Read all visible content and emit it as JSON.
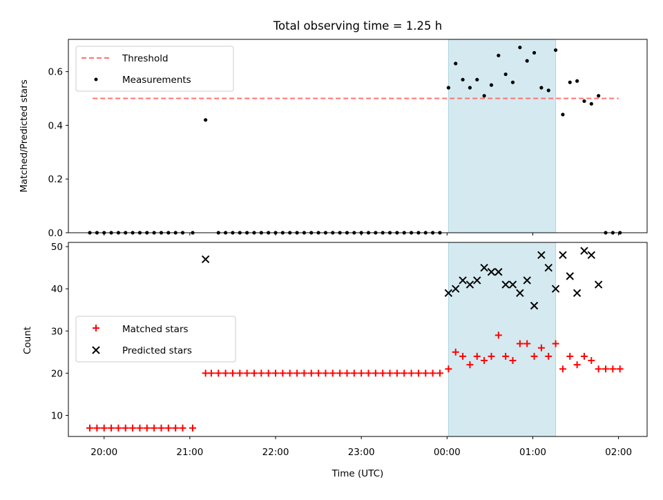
{
  "chart_data": [
    {
      "type": "scatter",
      "title": "Total observing time = 1.25 h",
      "ylabel": "Matched/Predicted stars",
      "xlabel": "",
      "xlim": [
        "19:35",
        "02:20"
      ],
      "ylim": [
        0,
        0.72
      ],
      "y_ticks": [
        0.0,
        0.2,
        0.4,
        0.6
      ],
      "y_tick_labels": [
        "0.0",
        "0.2",
        "0.4",
        "0.6"
      ],
      "shaded_region": {
        "x": [
          "00:01",
          "01:16"
        ],
        "color": "#d4eaf0"
      },
      "legend": {
        "placement": "top-left",
        "entries": [
          "Threshold",
          "Measurements"
        ]
      },
      "series": [
        {
          "name": "Threshold",
          "kind": "dashed-line",
          "color": "#ff7070",
          "x": [
            "19:52",
            "02:00"
          ],
          "y": [
            0.5,
            0.5
          ]
        },
        {
          "name": "Measurements",
          "kind": "points",
          "color": "#000000",
          "points": [
            [
              "19:50",
              0
            ],
            [
              "19:55",
              0
            ],
            [
              "20:00",
              0
            ],
            [
              "20:05",
              0
            ],
            [
              "20:10",
              0
            ],
            [
              "20:15",
              0
            ],
            [
              "20:20",
              0
            ],
            [
              "20:25",
              0
            ],
            [
              "20:30",
              0
            ],
            [
              "20:35",
              0
            ],
            [
              "20:40",
              0
            ],
            [
              "20:45",
              0
            ],
            [
              "20:50",
              0
            ],
            [
              "20:55",
              0
            ],
            [
              "21:02",
              0
            ],
            [
              "21:11",
              0.42
            ],
            [
              "21:20",
              0
            ],
            [
              "21:25",
              0
            ],
            [
              "21:30",
              0
            ],
            [
              "21:35",
              0
            ],
            [
              "21:40",
              0
            ],
            [
              "21:45",
              0
            ],
            [
              "21:50",
              0
            ],
            [
              "21:55",
              0
            ],
            [
              "22:00",
              0
            ],
            [
              "22:05",
              0
            ],
            [
              "22:10",
              0
            ],
            [
              "22:15",
              0
            ],
            [
              "22:20",
              0
            ],
            [
              "22:25",
              0
            ],
            [
              "22:30",
              0
            ],
            [
              "22:35",
              0
            ],
            [
              "22:40",
              0
            ],
            [
              "22:45",
              0
            ],
            [
              "22:50",
              0
            ],
            [
              "22:55",
              0
            ],
            [
              "23:00",
              0
            ],
            [
              "23:05",
              0
            ],
            [
              "23:10",
              0
            ],
            [
              "23:15",
              0
            ],
            [
              "23:20",
              0
            ],
            [
              "23:25",
              0
            ],
            [
              "23:30",
              0
            ],
            [
              "23:35",
              0
            ],
            [
              "23:40",
              0
            ],
            [
              "23:45",
              0
            ],
            [
              "23:50",
              0
            ],
            [
              "23:55",
              0
            ],
            [
              "00:01",
              0.54
            ],
            [
              "00:06",
              0.63
            ],
            [
              "00:11",
              0.57
            ],
            [
              "00:16",
              0.54
            ],
            [
              "00:21",
              0.57
            ],
            [
              "00:26",
              0.51
            ],
            [
              "00:31",
              0.55
            ],
            [
              "00:36",
              0.66
            ],
            [
              "00:41",
              0.59
            ],
            [
              "00:46",
              0.56
            ],
            [
              "00:51",
              0.69
            ],
            [
              "00:56",
              0.64
            ],
            [
              "01:01",
              0.67
            ],
            [
              "01:06",
              0.54
            ],
            [
              "01:11",
              0.53
            ],
            [
              "01:16",
              0.68
            ],
            [
              "01:21",
              0.44
            ],
            [
              "01:26",
              0.56
            ],
            [
              "01:31",
              0.565
            ],
            [
              "01:36",
              0.49
            ],
            [
              "01:41",
              0.48
            ],
            [
              "01:46",
              0.51
            ],
            [
              "01:51",
              0
            ],
            [
              "01:56",
              0
            ],
            [
              "02:01",
              0
            ]
          ]
        }
      ]
    },
    {
      "type": "scatter",
      "title": "",
      "ylabel": "Count",
      "xlabel": "Time (UTC)",
      "xlim": [
        "19:35",
        "02:20"
      ],
      "ylim": [
        5,
        51
      ],
      "y_ticks": [
        10,
        20,
        30,
        40,
        50
      ],
      "y_tick_labels": [
        "10",
        "20",
        "30",
        "40",
        "50"
      ],
      "x_ticks": [
        "20:00",
        "21:00",
        "22:00",
        "23:00",
        "00:00",
        "01:00",
        "02:00"
      ],
      "shaded_region": {
        "x": [
          "00:01",
          "01:16"
        ],
        "color": "#d4eaf0"
      },
      "legend": {
        "placement": "center-left",
        "entries": [
          "Matched stars",
          "Predicted stars"
        ]
      },
      "series": [
        {
          "name": "Matched stars",
          "kind": "plus-markers",
          "color": "#ff0000",
          "points": [
            [
              "19:50",
              7
            ],
            [
              "19:55",
              7
            ],
            [
              "20:00",
              7
            ],
            [
              "20:05",
              7
            ],
            [
              "20:10",
              7
            ],
            [
              "20:15",
              7
            ],
            [
              "20:20",
              7
            ],
            [
              "20:25",
              7
            ],
            [
              "20:30",
              7
            ],
            [
              "20:35",
              7
            ],
            [
              "20:40",
              7
            ],
            [
              "20:45",
              7
            ],
            [
              "20:50",
              7
            ],
            [
              "20:55",
              7
            ],
            [
              "21:02",
              7
            ],
            [
              "21:11",
              20
            ],
            [
              "21:15",
              20
            ],
            [
              "21:20",
              20
            ],
            [
              "21:25",
              20
            ],
            [
              "21:30",
              20
            ],
            [
              "21:35",
              20
            ],
            [
              "21:40",
              20
            ],
            [
              "21:45",
              20
            ],
            [
              "21:50",
              20
            ],
            [
              "21:55",
              20
            ],
            [
              "22:00",
              20
            ],
            [
              "22:05",
              20
            ],
            [
              "22:10",
              20
            ],
            [
              "22:15",
              20
            ],
            [
              "22:20",
              20
            ],
            [
              "22:25",
              20
            ],
            [
              "22:30",
              20
            ],
            [
              "22:35",
              20
            ],
            [
              "22:40",
              20
            ],
            [
              "22:45",
              20
            ],
            [
              "22:50",
              20
            ],
            [
              "22:55",
              20
            ],
            [
              "23:00",
              20
            ],
            [
              "23:05",
              20
            ],
            [
              "23:10",
              20
            ],
            [
              "23:15",
              20
            ],
            [
              "23:20",
              20
            ],
            [
              "23:25",
              20
            ],
            [
              "23:30",
              20
            ],
            [
              "23:35",
              20
            ],
            [
              "23:40",
              20
            ],
            [
              "23:45",
              20
            ],
            [
              "23:50",
              20
            ],
            [
              "23:55",
              20
            ],
            [
              "00:01",
              21
            ],
            [
              "00:06",
              25
            ],
            [
              "00:11",
              24
            ],
            [
              "00:16",
              22
            ],
            [
              "00:21",
              24
            ],
            [
              "00:26",
              23
            ],
            [
              "00:31",
              24
            ],
            [
              "00:36",
              29
            ],
            [
              "00:41",
              24
            ],
            [
              "00:46",
              23
            ],
            [
              "00:51",
              27
            ],
            [
              "00:56",
              27
            ],
            [
              "01:01",
              24
            ],
            [
              "01:06",
              26
            ],
            [
              "01:11",
              24
            ],
            [
              "01:16",
              27
            ],
            [
              "01:21",
              21
            ],
            [
              "01:26",
              24
            ],
            [
              "01:31",
              22
            ],
            [
              "01:36",
              24
            ],
            [
              "01:41",
              23
            ],
            [
              "01:46",
              21
            ],
            [
              "01:51",
              21
            ],
            [
              "01:56",
              21
            ],
            [
              "02:01",
              21
            ]
          ]
        },
        {
          "name": "Predicted stars",
          "kind": "x-markers",
          "color": "#000000",
          "points": [
            [
              "21:11",
              47
            ],
            [
              "00:01",
              39
            ],
            [
              "00:06",
              40
            ],
            [
              "00:11",
              42
            ],
            [
              "00:16",
              41
            ],
            [
              "00:21",
              42
            ],
            [
              "00:26",
              45
            ],
            [
              "00:31",
              44
            ],
            [
              "00:36",
              44
            ],
            [
              "00:41",
              41
            ],
            [
              "00:46",
              41
            ],
            [
              "00:51",
              39
            ],
            [
              "00:56",
              42
            ],
            [
              "01:01",
              36
            ],
            [
              "01:06",
              48
            ],
            [
              "01:11",
              45
            ],
            [
              "01:16",
              40
            ],
            [
              "01:21",
              48
            ],
            [
              "01:26",
              43
            ],
            [
              "01:31",
              39
            ],
            [
              "01:36",
              49
            ],
            [
              "01:41",
              48
            ],
            [
              "01:46",
              41
            ]
          ]
        }
      ]
    }
  ]
}
